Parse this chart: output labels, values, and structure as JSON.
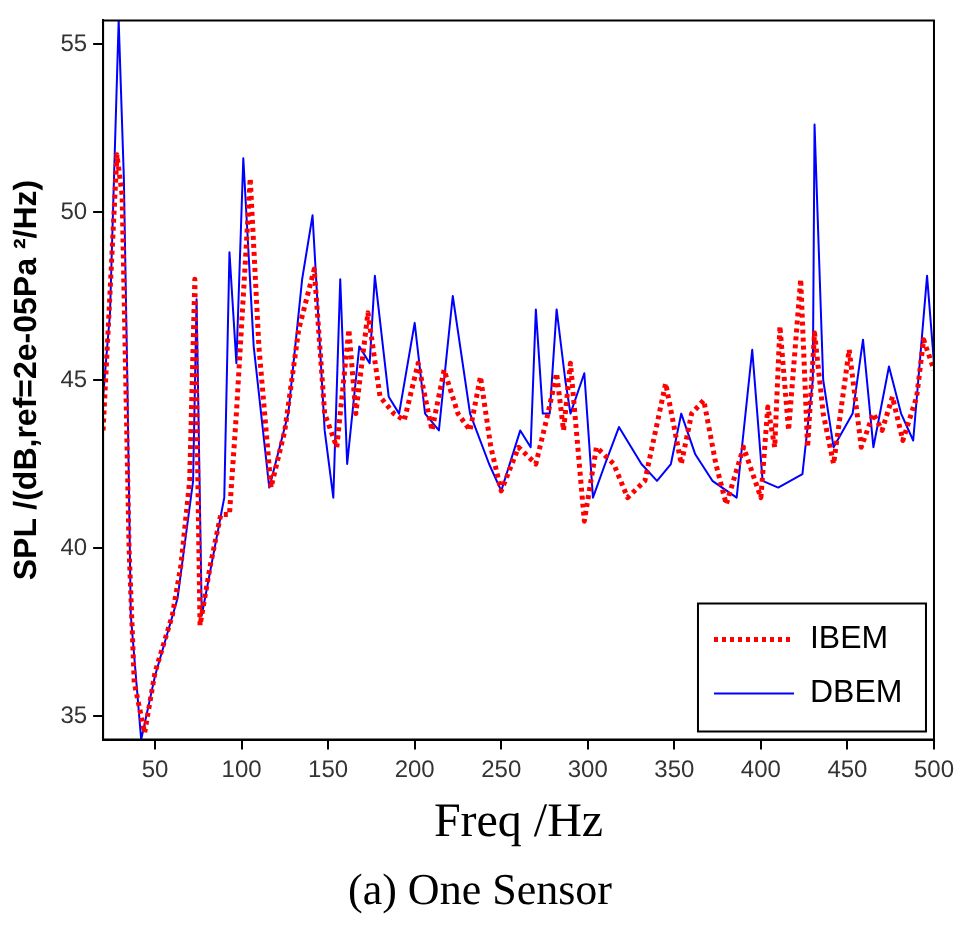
{
  "chart_data": {
    "type": "line",
    "xlabel": "Freq /Hz",
    "ylabel": "SPL /(dB,ref=2e-05Pa ²/Hz)",
    "annotations": [
      "(a)  One Sensor"
    ],
    "xlim": [
      20,
      500
    ],
    "ylim": [
      34.3,
      55.7
    ],
    "xticks": [
      50,
      100,
      150,
      200,
      250,
      300,
      350,
      400,
      450,
      500
    ],
    "yticks": [
      35,
      40,
      45,
      50,
      55
    ],
    "grid": false,
    "legend": "bottom right",
    "marker": "none",
    "series": [
      {
        "name": "IBEM",
        "color": "#ff0000",
        "line_style": "dotted",
        "x": [
          20,
          28,
          31,
          35,
          38,
          44,
          50,
          60,
          65,
          70,
          73,
          76,
          82,
          88,
          93,
          97,
          105,
          110,
          117,
          125,
          133,
          142,
          148,
          155,
          162,
          166,
          173,
          180,
          188,
          194,
          202,
          210,
          217,
          225,
          232,
          238,
          244,
          250,
          260,
          270,
          277,
          282,
          286,
          290,
          298,
          305,
          315,
          323,
          333,
          345,
          354,
          360,
          367,
          374,
          380,
          390,
          400,
          404,
          408,
          411,
          416,
          423,
          427,
          431,
          436,
          442,
          451,
          458,
          465,
          470,
          476,
          482,
          490,
          494,
          500
        ],
        "values": [
          43.5,
          51.7,
          50.5,
          40,
          36,
          34.5,
          36.3,
          38,
          39.5,
          42,
          48,
          37.7,
          39.5,
          41,
          41,
          44,
          51,
          46,
          41.8,
          43.5,
          46.5,
          48.3,
          44,
          43,
          46.5,
          44,
          47,
          44.5,
          44,
          43.8,
          45.5,
          43.5,
          45.3,
          44,
          43.5,
          45.1,
          43,
          41.7,
          43,
          42.5,
          44,
          45.2,
          43.5,
          45.5,
          40.8,
          43,
          42.5,
          41.5,
          42,
          44.9,
          42.5,
          44,
          44.4,
          42.5,
          41.3,
          43,
          41.5,
          44.2,
          43,
          46.6,
          43.5,
          48,
          43,
          46.4,
          44,
          42.5,
          45.9,
          43,
          44,
          43.5,
          44.5,
          43.2,
          44.5,
          46.2,
          45.3
        ]
      },
      {
        "name": "DBEM",
        "color": "#0000ff",
        "line_style": "solid",
        "x": [
          20,
          24,
          29,
          32,
          34,
          36,
          42,
          50,
          63,
          72,
          74,
          77,
          90,
          93,
          97,
          101,
          107,
          116,
          127,
          135,
          141,
          148,
          153,
          157,
          161,
          168,
          174,
          177,
          185,
          191,
          200,
          206,
          214,
          222,
          232,
          243,
          250,
          261,
          267,
          270,
          274,
          278,
          282,
          287,
          290,
          298,
          303,
          310,
          318,
          331,
          340,
          348,
          354,
          362,
          372,
          386,
          395,
          401,
          410,
          424,
          430,
          431,
          436,
          442,
          453,
          459,
          465,
          474,
          481,
          488,
          496,
          500
        ],
        "values": [
          44.5,
          47,
          55.7,
          51,
          45,
          38,
          34.3,
          36.2,
          38.5,
          42,
          47.4,
          38,
          41.5,
          48.8,
          45.5,
          51.6,
          46,
          41.8,
          44,
          48,
          49.9,
          43.5,
          41.5,
          48,
          42.5,
          46,
          45.5,
          48.1,
          44.5,
          44,
          46.7,
          44,
          43.5,
          47.5,
          44,
          42.5,
          41.7,
          43.5,
          43,
          47.1,
          44,
          44,
          47.1,
          45,
          44,
          45.2,
          41.5,
          42.5,
          43.6,
          42.5,
          42,
          42.5,
          44,
          42.8,
          42,
          41.5,
          45.9,
          42,
          41.8,
          42.2,
          45,
          52.6,
          45,
          43,
          44,
          46.2,
          43,
          45.4,
          44,
          43.2,
          48.1,
          45.5
        ]
      }
    ]
  }
}
